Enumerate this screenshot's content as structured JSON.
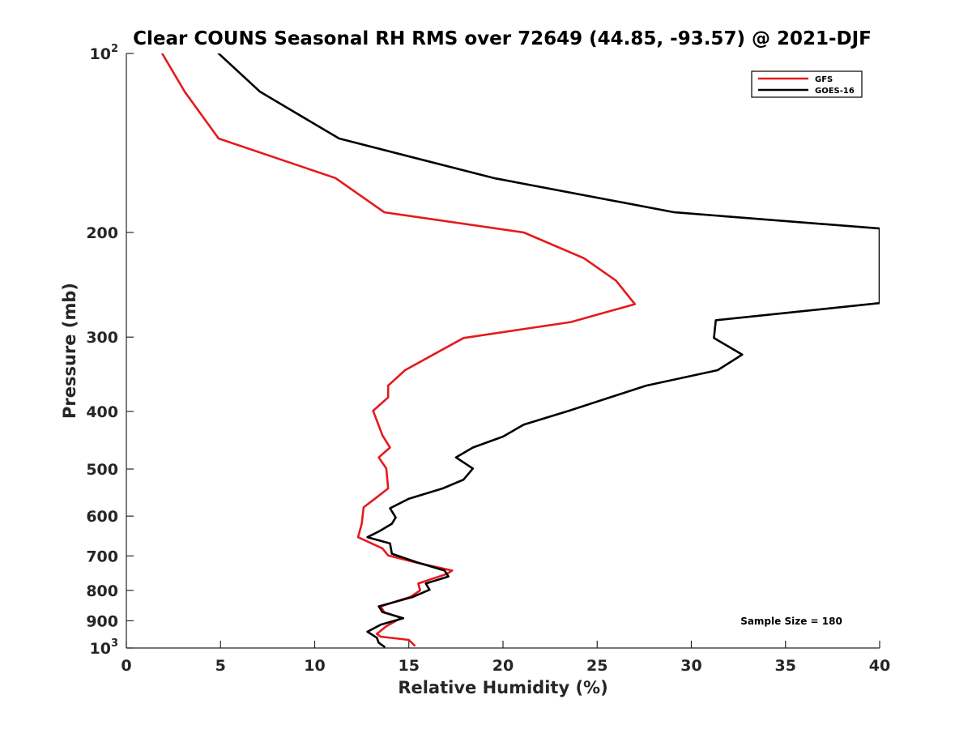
{
  "chart_data": {
    "type": "line",
    "title": "Clear COUNS Seasonal RH RMS over 72649 (44.85, -93.57) @ 2021-DJF",
    "xlabel": "Relative Humidity (%)",
    "ylabel": "Pressure (mb)",
    "xlim": [
      0,
      40
    ],
    "ylim": [
      100,
      1000
    ],
    "yscale": "log",
    "y_reversed": true,
    "xticks": [
      0,
      5,
      10,
      15,
      20,
      25,
      30,
      35,
      40
    ],
    "xtick_labels": [
      "0",
      "5",
      "10",
      "15",
      "20",
      "25",
      "30",
      "35",
      "40"
    ],
    "yticks": [
      {
        "value": 100,
        "base": "10",
        "exp": "2"
      },
      {
        "value": 200,
        "base": "200",
        "exp": ""
      },
      {
        "value": 300,
        "base": "300",
        "exp": ""
      },
      {
        "value": 400,
        "base": "400",
        "exp": ""
      },
      {
        "value": 500,
        "base": "500",
        "exp": ""
      },
      {
        "value": 600,
        "base": "600",
        "exp": ""
      },
      {
        "value": 700,
        "base": "700",
        "exp": ""
      },
      {
        "value": 800,
        "base": "800",
        "exp": ""
      },
      {
        "value": 900,
        "base": "900",
        "exp": ""
      },
      {
        "value": 1000,
        "base": "10",
        "exp": "3"
      }
    ],
    "grid": false,
    "legend_position": "top-right",
    "annotation": "Sample Size = 180",
    "series": [
      {
        "name": "GFS",
        "color": "#e41a1c",
        "points": [
          [
            1.9,
            100
          ],
          [
            3.1,
            116
          ],
          [
            4.9,
            139
          ],
          [
            11.1,
            162
          ],
          [
            13.7,
            185
          ],
          [
            21.1,
            200
          ],
          [
            24.3,
            221
          ],
          [
            26.0,
            241
          ],
          [
            27.0,
            264
          ],
          [
            23.6,
            283
          ],
          [
            17.9,
            301
          ],
          [
            14.8,
            341
          ],
          [
            13.9,
            362
          ],
          [
            13.9,
            379
          ],
          [
            13.1,
            399
          ],
          [
            13.6,
            439
          ],
          [
            14.0,
            460
          ],
          [
            13.4,
            478
          ],
          [
            13.8,
            499
          ],
          [
            13.9,
            539
          ],
          [
            13.2,
            561
          ],
          [
            12.6,
            580
          ],
          [
            12.5,
            618
          ],
          [
            12.3,
            651
          ],
          [
            13.6,
            680
          ],
          [
            13.9,
            699
          ],
          [
            15.3,
            717
          ],
          [
            17.3,
            741
          ],
          [
            17.0,
            751
          ],
          [
            15.5,
            779
          ],
          [
            15.6,
            800
          ],
          [
            15.1,
            820
          ],
          [
            13.5,
            851
          ],
          [
            13.7,
            871
          ],
          [
            14.6,
            890
          ],
          [
            13.8,
            919
          ],
          [
            13.3,
            947
          ],
          [
            13.5,
            957
          ],
          [
            15.0,
            969
          ],
          [
            15.3,
            990
          ]
        ]
      },
      {
        "name": "GOES-16",
        "color": "#000000",
        "points": [
          [
            4.9,
            100
          ],
          [
            7.1,
            116
          ],
          [
            11.3,
            139
          ],
          [
            19.5,
            162
          ],
          [
            29.1,
            185
          ],
          [
            40.0,
            197
          ],
          [
            40.0,
            263
          ],
          [
            31.3,
            281
          ],
          [
            31.2,
            301
          ],
          [
            32.7,
            321
          ],
          [
            31.4,
            341
          ],
          [
            27.6,
            362
          ],
          [
            23.5,
            399
          ],
          [
            21.1,
            421
          ],
          [
            20.0,
            441
          ],
          [
            18.4,
            460
          ],
          [
            17.5,
            478
          ],
          [
            18.4,
            499
          ],
          [
            17.9,
            521
          ],
          [
            16.8,
            539
          ],
          [
            15.0,
            561
          ],
          [
            14.0,
            582
          ],
          [
            14.3,
            603
          ],
          [
            14.1,
            618
          ],
          [
            13.4,
            637
          ],
          [
            12.8,
            651
          ],
          [
            14.0,
            667
          ],
          [
            14.1,
            694
          ],
          [
            15.4,
            717
          ],
          [
            16.9,
            741
          ],
          [
            17.1,
            758
          ],
          [
            15.9,
            779
          ],
          [
            16.1,
            798
          ],
          [
            15.2,
            821
          ],
          [
            13.4,
            851
          ],
          [
            13.6,
            870
          ],
          [
            14.7,
            891
          ],
          [
            13.5,
            914
          ],
          [
            12.8,
            939
          ],
          [
            13.3,
            961
          ],
          [
            13.4,
            980
          ],
          [
            13.7,
            995
          ]
        ]
      }
    ]
  }
}
